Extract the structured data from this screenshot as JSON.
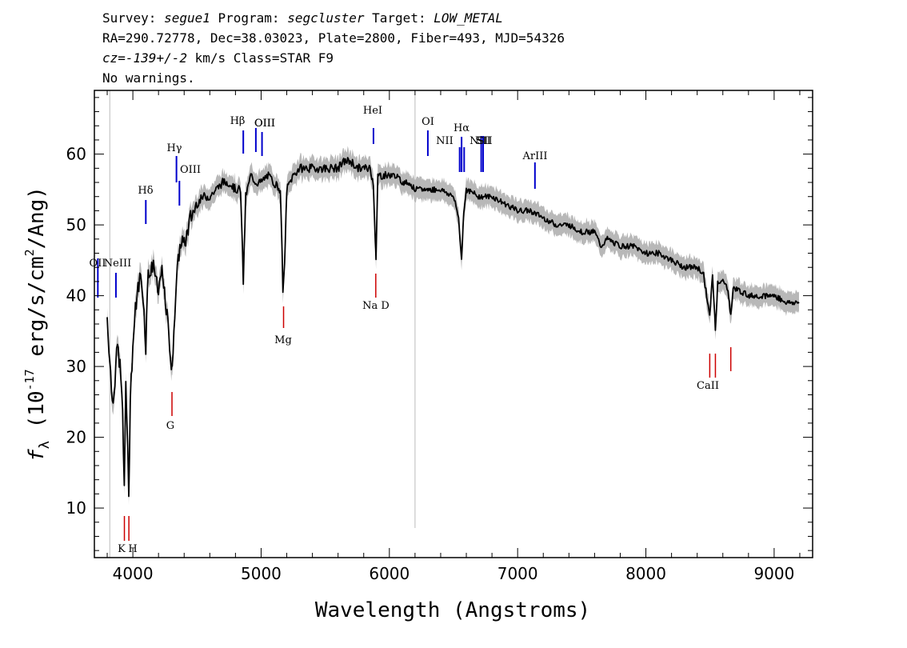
{
  "header": {
    "line1": {
      "survey_label": "Survey: ",
      "survey": "segue1",
      "program_label": " Program: ",
      "program": "segcluster",
      "target_label": " Target: ",
      "target": "LOW_METAL"
    },
    "line2": "RA=290.72778, Dec=38.03023, Plate=2800, Fiber=493, MJD=54326",
    "line3": {
      "cz_label": "cz=",
      "cz": "-139+/-2",
      "rest": " km/s Class=STAR F9"
    },
    "line4": "No warnings."
  },
  "chart_data": {
    "type": "line",
    "xlabel": "Wavelength (Angstroms)",
    "ylabel_parts": {
      "f": "f",
      "lambda": "λ",
      "pre": " (10",
      "exp": "-17",
      "mid": " erg/s/cm",
      "exp2": "2",
      "post": "/Ang)"
    },
    "xlim": [
      3700,
      9300
    ],
    "ylim": [
      3,
      69
    ],
    "xticks": [
      4000,
      5000,
      6000,
      7000,
      8000,
      9000
    ],
    "yticks": [
      10,
      20,
      30,
      40,
      50,
      60
    ],
    "series": [
      {
        "color": "#000000",
        "error_color": "#b8b8b8",
        "x": [
          3800,
          3820,
          3840,
          3860,
          3880,
          3900,
          3920,
          3933,
          3945,
          3955,
          3968,
          3980,
          4000,
          4020,
          4040,
          4060,
          4080,
          4101,
          4120,
          4140,
          4160,
          4180,
          4200,
          4220,
          4240,
          4260,
          4280,
          4300,
          4307,
          4320,
          4340,
          4360,
          4380,
          4400,
          4450,
          4500,
          4550,
          4600,
          4650,
          4700,
          4750,
          4800,
          4840,
          4861,
          4880,
          4920,
          4960,
          5000,
          5050,
          5100,
          5150,
          5170,
          5183,
          5200,
          5250,
          5300,
          5350,
          5400,
          5450,
          5500,
          5550,
          5600,
          5650,
          5700,
          5750,
          5800,
          5850,
          5875,
          5890,
          5896,
          5910,
          5950,
          6000,
          6050,
          6100,
          6150,
          6200,
          6300,
          6400,
          6500,
          6540,
          6563,
          6580,
          6600,
          6700,
          6800,
          6900,
          7000,
          7100,
          7200,
          7300,
          7400,
          7500,
          7600,
          7650,
          7700,
          7800,
          7900,
          8000,
          8100,
          8200,
          8300,
          8400,
          8450,
          8498,
          8520,
          8542,
          8560,
          8600,
          8640,
          8662,
          8680,
          8700,
          8800,
          8900,
          9000,
          9100,
          9200
        ],
        "values": [
          37,
          31,
          25,
          28,
          33,
          30,
          24,
          12,
          28,
          22,
          11,
          26,
          33,
          38,
          41,
          43,
          40,
          33,
          44,
          43,
          45,
          42,
          40,
          44,
          41,
          38,
          35,
          30,
          29,
          36,
          42,
          46,
          48,
          47,
          51,
          53,
          54,
          54,
          55,
          56,
          56,
          55,
          55,
          42,
          54,
          57,
          56,
          56,
          57,
          56,
          55,
          41,
          44,
          55,
          57,
          58,
          58,
          58,
          58,
          58,
          58,
          58,
          59,
          59,
          58,
          58,
          58,
          56,
          48,
          45,
          57,
          57,
          57,
          57,
          56,
          56,
          55,
          55,
          55,
          54,
          51,
          45,
          52,
          55,
          54,
          54,
          53,
          52,
          52,
          51,
          50,
          50,
          49,
          49,
          47,
          48,
          47,
          47,
          46,
          46,
          45,
          44,
          44,
          43,
          37,
          43,
          35,
          42,
          42,
          41,
          37,
          41,
          41,
          40,
          40,
          40,
          39,
          39
        ]
      }
    ],
    "vertical_lines": [
      {
        "x": 3820,
        "color": "#bbbbbb"
      },
      {
        "x": 6200,
        "color": "#bbbbbb"
      }
    ],
    "emission_lines": [
      {
        "label": "OII",
        "x": 3727
      },
      {
        "label": "NeIII",
        "x": 3868
      },
      {
        "label": "Hδ",
        "x": 4101
      },
      {
        "label": "Hγ",
        "x": 4340
      },
      {
        "label": "OIII",
        "x": 4363
      },
      {
        "label": "Hβ",
        "x": 4861
      },
      {
        "label": "OIII",
        "x": 4959
      },
      {
        "label": "OIII",
        "x": 5007
      },
      {
        "label": "HeI",
        "x": 5876
      },
      {
        "label": "OI",
        "x": 6300
      },
      {
        "label": "NII",
        "x": 6548
      },
      {
        "label": "Hα",
        "x": 6563
      },
      {
        "label": "NII",
        "x": 6583
      },
      {
        "label": "SII",
        "x": 6716
      },
      {
        "label": "SII",
        "x": 6731
      },
      {
        "label": "ArIII",
        "x": 7135
      }
    ],
    "absorption_lines": [
      {
        "label": "K",
        "x": 3934
      },
      {
        "label": "H",
        "x": 3969
      },
      {
        "label": "G",
        "x": 4305
      },
      {
        "label": "Mg",
        "x": 5175
      },
      {
        "label": "Na D",
        "x": 5894
      },
      {
        "label": "CaII",
        "x": 8498
      },
      {
        "label": "CaII",
        "x": 8542
      },
      {
        "label": "CaII",
        "x": 8662
      }
    ],
    "emission_color": "#0000cc",
    "absorption_color": "#cc0000"
  }
}
